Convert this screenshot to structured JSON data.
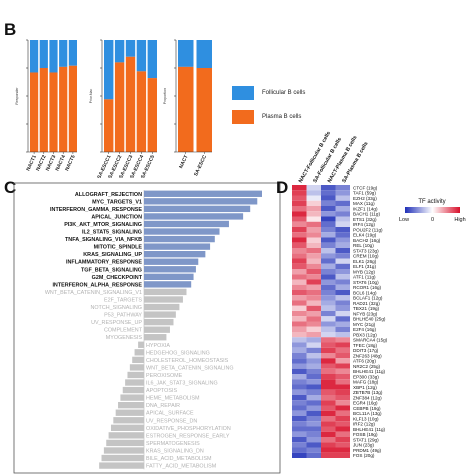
{
  "panels": {
    "b": {
      "letter": "B",
      "colors": {
        "follicular": "#2f8fe0",
        "plasma": "#f26b1d"
      },
      "legend": [
        {
          "label": "Follicular B cells",
          "color": "#2f8fe0"
        },
        {
          "label": "Plasma B cells",
          "color": "#f26b1d"
        }
      ],
      "charts": [
        {
          "ylabel": "Responder",
          "categories": [
            "NACT1",
            "NACT2",
            "NACT3",
            "NACT4",
            "NACT5"
          ],
          "plasma_fraction": [
            0.71,
            0.75,
            0.71,
            0.76,
            0.77
          ]
        },
        {
          "ylabel": "Prior.Nac",
          "categories": [
            "SA-ESCC1",
            "SA-ESCC2",
            "SA-ESCC3",
            "SA-ESCC4",
            "SA-ESCC5"
          ],
          "plasma_fraction": [
            0.47,
            0.8,
            0.85,
            0.72,
            0.66
          ]
        },
        {
          "ylabel": "Proportion",
          "categories": [
            "NACT",
            "SA-ESCC"
          ],
          "plasma_fraction": [
            0.76,
            0.75
          ]
        }
      ]
    },
    "c": {
      "letter": "C",
      "pathways": [
        {
          "name": "ALLOGRAFT_REJECTION",
          "value": 1.0,
          "sig": true
        },
        {
          "name": "MYC_TARGETS_V1",
          "value": 0.96,
          "sig": true
        },
        {
          "name": "INTERFERON_GAMMA_RESPONSE",
          "value": 0.9,
          "sig": true
        },
        {
          "name": "APICAL_JUNCTION",
          "value": 0.84,
          "sig": true
        },
        {
          "name": "PI3K_AKT_MTOR_SIGNALING",
          "value": 0.72,
          "sig": true
        },
        {
          "name": "IL2_STAT5_SIGNALING",
          "value": 0.64,
          "sig": true
        },
        {
          "name": "TNFA_SIGNALING_VIA_NFKB",
          "value": 0.6,
          "sig": true
        },
        {
          "name": "MITOTIC_SPINDLE",
          "value": 0.56,
          "sig": true
        },
        {
          "name": "KRAS_SIGNALING_UP",
          "value": 0.52,
          "sig": true
        },
        {
          "name": "INFLAMMATORY_RESPONSE",
          "value": 0.46,
          "sig": true
        },
        {
          "name": "TGF_BETA_SIGNALING",
          "value": 0.44,
          "sig": true
        },
        {
          "name": "G2M_CHECKPOINT",
          "value": 0.42,
          "sig": true
        },
        {
          "name": "INTERFERON_ALPHA_RESPONSE",
          "value": 0.4,
          "sig": true
        },
        {
          "name": "WNT_BETA_CATENIN_SIGNALING_V1",
          "value": 0.36,
          "sig": false
        },
        {
          "name": "E2F_TARGETS",
          "value": 0.33,
          "sig": false
        },
        {
          "name": "NOTCH_SIGNALING",
          "value": 0.3,
          "sig": false
        },
        {
          "name": "P53_PATHWAY",
          "value": 0.27,
          "sig": false
        },
        {
          "name": "UV_RESPONSE_UP",
          "value": 0.25,
          "sig": false
        },
        {
          "name": "COMPLEMENT",
          "value": 0.22,
          "sig": false
        },
        {
          "name": "MYOGENESIS",
          "value": 0.19,
          "sig": false
        },
        {
          "name": "HYPOXIA",
          "value": -0.05,
          "sig": false
        },
        {
          "name": "HEDGEHOG_SIGNALING",
          "value": -0.08,
          "sig": false
        },
        {
          "name": "CHOLESTEROL_HOMEOSTASIS",
          "value": -0.1,
          "sig": false
        },
        {
          "name": "WNT_BETA_CATENIN_SIGNALING",
          "value": -0.12,
          "sig": false
        },
        {
          "name": "PEROXISOME",
          "value": -0.14,
          "sig": false
        },
        {
          "name": "IL6_JAK_STAT3_SIGNALING",
          "value": -0.16,
          "sig": false
        },
        {
          "name": "APOPTOSIS",
          "value": -0.18,
          "sig": false
        },
        {
          "name": "HEME_METABOLISM",
          "value": -0.2,
          "sig": false
        },
        {
          "name": "DNA_REPAIR",
          "value": -0.22,
          "sig": false
        },
        {
          "name": "APICAL_SURFACE",
          "value": -0.24,
          "sig": false
        },
        {
          "name": "UV_RESPONSE_DN",
          "value": -0.26,
          "sig": false
        },
        {
          "name": "OXIDATIVE_PHOSPHORYLATION",
          "value": -0.28,
          "sig": false
        },
        {
          "name": "ESTROGEN_RESPONSE_EARLY",
          "value": -0.3,
          "sig": false
        },
        {
          "name": "SPERMATOGENESIS",
          "value": -0.32,
          "sig": false
        },
        {
          "name": "KRAS_SIGNALING_DN",
          "value": -0.34,
          "sig": false
        },
        {
          "name": "BILE_ACID_METABOLISM",
          "value": -0.36,
          "sig": false
        },
        {
          "name": "FATTY_ACID_METABOLISM",
          "value": -0.38,
          "sig": false
        }
      ]
    },
    "d": {
      "letter": "D",
      "columns": [
        "NACT-Follicular B cells",
        "SA-Follicular B cells",
        "NACT-Plasma B cells",
        "SA-Plasma B cells"
      ],
      "legend": {
        "title": "TF activity",
        "low": "Low",
        "mid": "0",
        "high": "High"
      },
      "colors": {
        "low": "#1f2fb8",
        "mid": "#ffffff",
        "high": "#d8102b"
      },
      "tfs": [
        {
          "name": "CTCF (19g)",
          "values": [
            0.9,
            -0.2,
            -0.8,
            -0.6
          ]
        },
        {
          "name": "TAF1 (59g)",
          "values": [
            0.8,
            -0.3,
            -0.7,
            -0.5
          ]
        },
        {
          "name": "EZH2 (33g)",
          "values": [
            0.7,
            -0.1,
            -0.8,
            -0.3
          ]
        },
        {
          "name": "MAX (11g)",
          "values": [
            0.8,
            0.2,
            -0.6,
            -0.7
          ]
        },
        {
          "name": "IKZF1 (14g)",
          "values": [
            0.6,
            0.4,
            -0.8,
            -0.4
          ]
        },
        {
          "name": "BACH1 (11g)",
          "values": [
            0.9,
            0.3,
            -0.5,
            -0.6
          ]
        },
        {
          "name": "ETS1 (32g)",
          "values": [
            0.7,
            0.1,
            -0.9,
            -0.3
          ]
        },
        {
          "name": "IRF4 (12g)",
          "values": [
            0.5,
            0.6,
            -0.7,
            -0.2
          ]
        },
        {
          "name": "POU2F2 (11g)",
          "values": [
            0.8,
            0.4,
            -0.6,
            -0.8
          ]
        },
        {
          "name": "ELK4 (19g)",
          "values": [
            0.6,
            0.5,
            -0.4,
            -0.7
          ]
        },
        {
          "name": "BACH2 (16g)",
          "values": [
            0.9,
            0.2,
            -0.8,
            -0.5
          ]
        },
        {
          "name": "REL (10g)",
          "values": [
            0.7,
            0.3,
            -0.6,
            -0.4
          ]
        },
        {
          "name": "STAT3 (23g)",
          "values": [
            0.5,
            0.6,
            -0.3,
            -0.8
          ]
        },
        {
          "name": "CREM (10g)",
          "values": [
            0.6,
            0.4,
            -0.5,
            -0.6
          ]
        },
        {
          "name": "ELK1 (26g)",
          "values": [
            0.8,
            0.3,
            -0.7,
            -0.2
          ]
        },
        {
          "name": "ELF1 (31g)",
          "values": [
            0.7,
            0.5,
            -0.4,
            -0.7
          ]
        },
        {
          "name": "MYB (12g)",
          "values": [
            0.4,
            0.7,
            -0.6,
            -0.5
          ]
        },
        {
          "name": "ATF1 (11g)",
          "values": [
            0.6,
            0.5,
            -0.8,
            -0.3
          ]
        },
        {
          "name": "STAT6 (10g)",
          "values": [
            0.3,
            0.8,
            -0.5,
            -0.6
          ]
        },
        {
          "name": "RCOR1 (16g)",
          "values": [
            0.5,
            0.4,
            -0.7,
            -0.4
          ]
        },
        {
          "name": "BCL6 (14g)",
          "values": [
            0.7,
            0.6,
            -0.6,
            -0.8
          ]
        },
        {
          "name": "BCLAF1 (12g)",
          "values": [
            0.4,
            0.5,
            -0.5,
            -0.3
          ]
        },
        {
          "name": "RAD21 (32g)",
          "values": [
            0.6,
            0.3,
            -0.4,
            -0.6
          ]
        },
        {
          "name": "TBX21 (19g)",
          "values": [
            0.2,
            0.7,
            -0.3,
            -0.5
          ]
        },
        {
          "name": "NFYB (23g)",
          "values": [
            0.5,
            0.4,
            -0.6,
            -0.2
          ]
        },
        {
          "name": "BHLHE40 (25g)",
          "values": [
            0.3,
            0.6,
            -0.2,
            -0.7
          ]
        },
        {
          "name": "MYC (21g)",
          "values": [
            0.6,
            0.5,
            -0.5,
            -0.4
          ]
        },
        {
          "name": "E2F4 (16g)",
          "values": [
            0.4,
            0.2,
            -0.3,
            -0.6
          ]
        },
        {
          "name": "PBX3 (12g)",
          "values": [
            0.3,
            0.4,
            -0.2,
            -0.3
          ]
        },
        {
          "name": "SMARCA4 (15g)",
          "values": [
            -0.3,
            -0.4,
            0.6,
            0.5
          ]
        },
        {
          "name": "TFEC (18g)",
          "values": [
            -0.5,
            -0.2,
            0.7,
            0.8
          ]
        },
        {
          "name": "DDIT3 (17g)",
          "values": [
            -0.4,
            -0.6,
            0.8,
            0.6
          ]
        },
        {
          "name": "ZNF263 (48g)",
          "values": [
            -0.6,
            -0.3,
            0.5,
            0.7
          ]
        },
        {
          "name": "ATF6 (20g)",
          "values": [
            -0.7,
            -0.5,
            0.9,
            0.4
          ]
        },
        {
          "name": "NR2C2 (25g)",
          "values": [
            -0.5,
            -0.4,
            0.7,
            0.8
          ]
        },
        {
          "name": "BHLHE41 (11g)",
          "values": [
            -0.8,
            -0.6,
            0.6,
            0.5
          ]
        },
        {
          "name": "EP300 (33g)",
          "values": [
            -0.4,
            -0.7,
            0.8,
            0.7
          ]
        },
        {
          "name": "MAFG (18g)",
          "values": [
            -0.6,
            -0.5,
            0.9,
            0.6
          ]
        },
        {
          "name": "XBP1 (12g)",
          "values": [
            -0.7,
            -0.8,
            0.9,
            0.9
          ]
        },
        {
          "name": "ZBTB7B (13g)",
          "values": [
            -0.5,
            -0.6,
            0.7,
            0.8
          ]
        },
        {
          "name": "ZNF384 (12g)",
          "values": [
            -0.8,
            -0.4,
            0.6,
            0.7
          ]
        },
        {
          "name": "EGR4 (16g)",
          "values": [
            -0.6,
            -0.7,
            0.8,
            0.5
          ]
        },
        {
          "name": "CEBPB (19g)",
          "values": [
            -0.7,
            -0.5,
            0.7,
            0.9
          ]
        },
        {
          "name": "BCL11A (13g)",
          "values": [
            -0.5,
            -0.8,
            0.9,
            0.6
          ]
        },
        {
          "name": "KLF13 (10g)",
          "values": [
            -0.8,
            -0.6,
            0.6,
            0.8
          ]
        },
        {
          "name": "IRF2 (12g)",
          "values": [
            -0.6,
            -0.5,
            0.8,
            0.7
          ]
        },
        {
          "name": "BHLHE41 (11g)",
          "values": [
            -0.7,
            -0.7,
            0.7,
            0.9
          ]
        },
        {
          "name": "FOSB (19g)",
          "values": [
            -0.5,
            -0.6,
            0.9,
            0.6
          ]
        },
        {
          "name": "STAT1 (29g)",
          "values": [
            -0.8,
            -0.5,
            0.6,
            0.8
          ]
        },
        {
          "name": "JUN (23g)",
          "values": [
            -0.6,
            -0.8,
            0.8,
            0.7
          ]
        },
        {
          "name": "PRDM1 (49g)",
          "values": [
            -0.7,
            -0.6,
            0.9,
            0.9
          ]
        },
        {
          "name": "FOS (20g)",
          "values": [
            -0.9,
            -0.7,
            0.8,
            0.8
          ]
        }
      ]
    }
  }
}
